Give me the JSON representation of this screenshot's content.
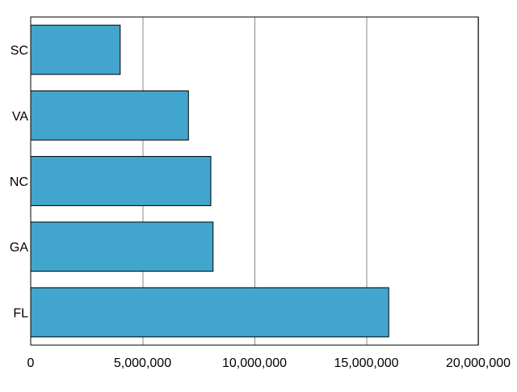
{
  "chart_data": {
    "type": "bar",
    "orientation": "horizontal",
    "categories": [
      "SC",
      "VA",
      "NC",
      "GA",
      "FL"
    ],
    "values": [
      4000000,
      7050000,
      8050000,
      8150000,
      16000000
    ],
    "xlim": [
      0,
      20000000
    ],
    "xticks": [
      0,
      5000000,
      10000000,
      15000000,
      20000000
    ],
    "xtick_labels": [
      "0",
      "5,000,000",
      "10,000,000",
      "15,000,000",
      "20,000,000"
    ],
    "grid": "vertical",
    "title": "",
    "xlabel": "",
    "ylabel": "",
    "colors": {
      "bar": "#42a5cd",
      "bar_border": "#000000",
      "grid": "#888888",
      "frame": "#000000"
    }
  }
}
